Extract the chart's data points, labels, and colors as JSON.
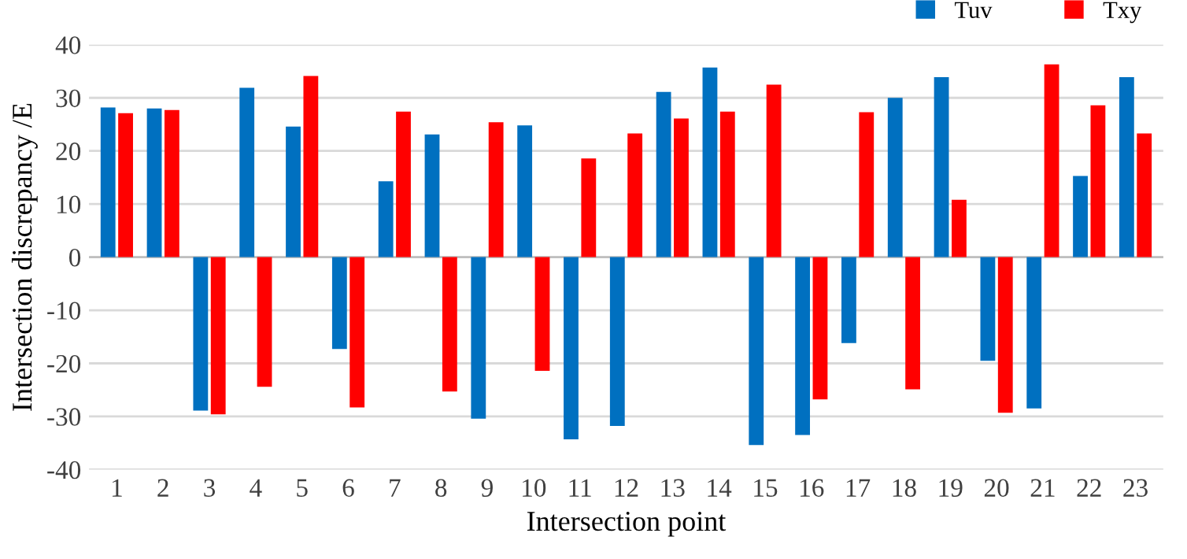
{
  "chart_data": {
    "type": "bar",
    "xlabel": "Intersection point",
    "ylabel": "Intersection discrepancy /E",
    "categories": [
      "1",
      "2",
      "3",
      "4",
      "5",
      "6",
      "7",
      "8",
      "9",
      "10",
      "11",
      "12",
      "13",
      "14",
      "15",
      "16",
      "17",
      "18",
      "19",
      "20",
      "21",
      "22",
      "23"
    ],
    "series": [
      {
        "name": "Tuv",
        "color": "#0070c0",
        "values": [
          28.2,
          28.0,
          -28.9,
          31.9,
          24.6,
          -17.3,
          14.3,
          23.1,
          -30.4,
          24.8,
          -34.3,
          -31.8,
          31.1,
          35.7,
          -35.4,
          -33.5,
          -16.2,
          30.0,
          33.9,
          -19.5,
          -28.5,
          15.3,
          33.9
        ]
      },
      {
        "name": "Txy",
        "color": "#ff0000",
        "values": [
          27.1,
          27.7,
          -29.6,
          -24.4,
          34.1,
          -28.3,
          27.4,
          -25.3,
          25.4,
          -21.4,
          18.6,
          23.3,
          26.1,
          27.4,
          32.5,
          -26.8,
          27.3,
          -24.9,
          10.8,
          -29.3,
          36.3,
          28.6,
          23.3
        ]
      }
    ],
    "ylim": [
      -40,
      40
    ],
    "yticks": [
      -40,
      -30,
      -20,
      -10,
      0,
      10,
      20,
      30,
      40
    ],
    "grid": "y",
    "legend": "top right"
  }
}
